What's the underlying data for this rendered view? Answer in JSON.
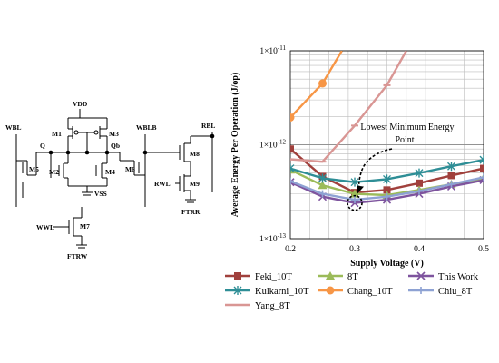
{
  "circuit": {
    "labels": {
      "wbl": "WBL",
      "vdd": "VDD",
      "m1": "M1",
      "m3": "M3",
      "q": "Q",
      "qb": "Qb",
      "m2": "M2",
      "m4": "M4",
      "m5": "M5",
      "m6": "M6",
      "vss": "VSS",
      "wwl": "WWL",
      "m7": "M7",
      "ftrw": "FTRW",
      "wblb": "WBLB",
      "rbl": "RBL",
      "m8": "M8",
      "rwl": "RWL",
      "m9": "M9",
      "ftrr": "FTRR"
    }
  },
  "chart_data": {
    "type": "line",
    "xlabel": "Supply Voltage (V)",
    "ylabel": "Average Energy Per Operation (J/op)",
    "xlim": [
      0.2,
      0.5
    ],
    "ylim": [
      1e-13,
      1e-11
    ],
    "yscale": "log",
    "grid": true,
    "x_ticks": [
      "0.2",
      "0.3",
      "0.4",
      "0.5"
    ],
    "y_ticks": [
      {
        "base": "1×10",
        "exp": "-11"
      },
      {
        "base": "1×10",
        "exp": "-12"
      },
      {
        "base": "1×10",
        "exp": "-13"
      }
    ],
    "legend_position": "bottom",
    "annotation": {
      "line1": "Lowest Minimum Energy",
      "line2": "Point",
      "target_x": 0.3,
      "target_y": 2.4e-13
    },
    "series": [
      {
        "name": "Feki_10T",
        "color": "#A0403C",
        "marker": "square",
        "points": [
          [
            0.2,
            9e-13
          ],
          [
            0.25,
            4.6e-13
          ],
          [
            0.3,
            3.1e-13
          ],
          [
            0.35,
            3.3e-13
          ],
          [
            0.4,
            3.9e-13
          ],
          [
            0.45,
            4.7e-13
          ],
          [
            0.5,
            5.6e-13
          ]
        ]
      },
      {
        "name": "8T",
        "color": "#9BBB59",
        "marker": "triangle",
        "points": [
          [
            0.2,
            5.4e-13
          ],
          [
            0.25,
            3.7e-13
          ],
          [
            0.3,
            3e-13
          ],
          [
            0.35,
            2.9e-13
          ],
          [
            0.4,
            3.3e-13
          ],
          [
            0.45,
            3.8e-13
          ],
          [
            0.5,
            4.4e-13
          ]
        ]
      },
      {
        "name": "This Work",
        "color": "#7E549E",
        "marker": "x",
        "points": [
          [
            0.2,
            4e-13
          ],
          [
            0.25,
            2.8e-13
          ],
          [
            0.3,
            2.4e-13
          ],
          [
            0.35,
            2.6e-13
          ],
          [
            0.4,
            3e-13
          ],
          [
            0.45,
            3.6e-13
          ],
          [
            0.5,
            4.2e-13
          ]
        ]
      },
      {
        "name": "Kulkarni_10T",
        "color": "#2E8E96",
        "marker": "star",
        "points": [
          [
            0.2,
            5.6e-13
          ],
          [
            0.25,
            4.4e-13
          ],
          [
            0.3,
            4e-13
          ],
          [
            0.35,
            4.3e-13
          ],
          [
            0.4,
            5e-13
          ],
          [
            0.45,
            5.9e-13
          ],
          [
            0.5,
            6.9e-13
          ]
        ]
      },
      {
        "name": "Chang_10T",
        "color": "#F79646",
        "marker": "circle",
        "points": [
          [
            0.2,
            1.95e-12
          ],
          [
            0.25,
            4.5e-12
          ],
          [
            0.28,
            1e-11
          ]
        ]
      },
      {
        "name": "Chiu_8T",
        "color": "#8EA2D3",
        "marker": "plus",
        "points": [
          [
            0.2,
            4.1e-13
          ],
          [
            0.25,
            3e-13
          ],
          [
            0.3,
            2.6e-13
          ],
          [
            0.35,
            2.8e-13
          ],
          [
            0.4,
            3.2e-13
          ],
          [
            0.45,
            3.8e-13
          ],
          [
            0.5,
            4.5e-13
          ]
        ]
      },
      {
        "name": "Yang_8T",
        "color": "#D99694",
        "marker": "dash",
        "points": [
          [
            0.2,
            7e-13
          ],
          [
            0.25,
            6.6e-13
          ],
          [
            0.3,
            1.6e-12
          ],
          [
            0.35,
            4.3e-12
          ],
          [
            0.38,
            1e-11
          ]
        ]
      }
    ]
  }
}
